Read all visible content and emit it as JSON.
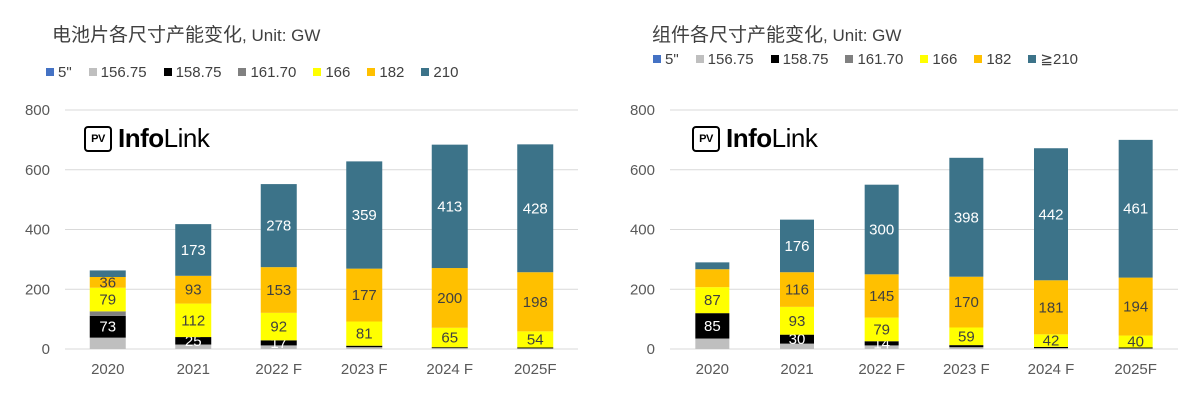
{
  "charts": [
    {
      "title_main": "电池片各尺寸产能变化",
      "title_unit": ", Unit: GW",
      "logo": {
        "box": "PV",
        "info": "Info",
        "link": "Link"
      },
      "legend": [
        {
          "label": "5\"",
          "color": "#4472c4"
        },
        {
          "label": "156.75",
          "color": "#bfbfbf"
        },
        {
          "label": "158.75",
          "color": "#000000"
        },
        {
          "label": "161.70",
          "color": "#808080"
        },
        {
          "label": "166",
          "color": "#ffff00"
        },
        {
          "label": "182",
          "color": "#ffc000"
        },
        {
          "label": "210",
          "color": "#3c7389"
        }
      ]
    },
    {
      "title_main": "组件各尺寸产能变化",
      "title_unit": ", Unit: GW",
      "logo": {
        "box": "PV",
        "info": "Info",
        "link": "Link"
      },
      "legend": [
        {
          "label": "5\"",
          "color": "#4472c4"
        },
        {
          "label": "156.75",
          "color": "#bfbfbf"
        },
        {
          "label": "158.75",
          "color": "#000000"
        },
        {
          "label": "161.70",
          "color": "#808080"
        },
        {
          "label": "166",
          "color": "#ffff00"
        },
        {
          "label": "182",
          "color": "#ffc000"
        },
        {
          "label": "≧210",
          "color": "#3c7389"
        }
      ]
    }
  ],
  "chart_data": [
    {
      "type": "bar",
      "stacked": true,
      "title": "电池片各尺寸产能变化, Unit: GW",
      "categories": [
        "2020",
        "2021",
        "2022 F",
        "2023 F",
        "2024 F",
        "2025F"
      ],
      "ylim": [
        0,
        800
      ],
      "yticks": [
        0,
        200,
        400,
        600,
        800
      ],
      "grid": true,
      "legend_position": "top",
      "series": [
        {
          "name": "5\"",
          "color": "#4472c4",
          "values": [
            0,
            0,
            0,
            0,
            0,
            0
          ],
          "labels": [
            "",
            "",
            "",
            "",
            "",
            ""
          ]
        },
        {
          "name": "156.75",
          "color": "#bfbfbf",
          "values": [
            38,
            15,
            12,
            6,
            3,
            2
          ],
          "labels": [
            "",
            "",
            "",
            "",
            "",
            ""
          ]
        },
        {
          "name": "158.75",
          "color": "#000000",
          "values": [
            73,
            25,
            17,
            5,
            3,
            3
          ],
          "labels": [
            "73",
            "25",
            "17",
            "",
            "",
            ""
          ]
        },
        {
          "name": "161.70",
          "color": "#808080",
          "values": [
            15,
            0,
            0,
            0,
            0,
            0
          ],
          "labels": [
            "",
            "",
            "",
            "",
            "",
            ""
          ]
        },
        {
          "name": "166",
          "color": "#ffff00",
          "values": [
            79,
            112,
            92,
            81,
            65,
            54
          ],
          "labels": [
            "79",
            "112",
            "92",
            "81",
            "65",
            "54"
          ]
        },
        {
          "name": "182",
          "color": "#ffc000",
          "values": [
            36,
            93,
            153,
            177,
            200,
            198
          ],
          "labels": [
            "36",
            "93",
            "153",
            "177",
            "200",
            "198"
          ]
        },
        {
          "name": "210",
          "color": "#3c7389",
          "values": [
            22,
            173,
            278,
            359,
            413,
            428
          ],
          "labels": [
            "",
            "173",
            "278",
            "359",
            "413",
            "428"
          ]
        }
      ]
    },
    {
      "type": "bar",
      "stacked": true,
      "title": "组件各尺寸产能变化, Unit: GW",
      "categories": [
        "2020",
        "2021",
        "2022 F",
        "2023 F",
        "2024 F",
        "2025F"
      ],
      "ylim": [
        0,
        800
      ],
      "yticks": [
        0,
        200,
        400,
        600,
        800
      ],
      "grid": true,
      "legend_position": "top",
      "series": [
        {
          "name": "5\"",
          "color": "#4472c4",
          "values": [
            0,
            0,
            0,
            0,
            0,
            0
          ],
          "labels": [
            "",
            "",
            "",
            "",
            "",
            ""
          ]
        },
        {
          "name": "156.75",
          "color": "#bfbfbf",
          "values": [
            35,
            18,
            12,
            6,
            3,
            2
          ],
          "labels": [
            "",
            "",
            "",
            "",
            "",
            ""
          ]
        },
        {
          "name": "158.75",
          "color": "#000000",
          "values": [
            85,
            30,
            14,
            7,
            4,
            3
          ],
          "labels": [
            "85",
            "30",
            "14",
            "",
            "",
            ""
          ]
        },
        {
          "name": "161.70",
          "color": "#808080",
          "values": [
            0,
            0,
            0,
            0,
            0,
            0
          ],
          "labels": [
            "",
            "",
            "",
            "",
            "",
            ""
          ]
        },
        {
          "name": "166",
          "color": "#ffff00",
          "values": [
            87,
            93,
            79,
            59,
            42,
            40
          ],
          "labels": [
            "87",
            "93",
            "79",
            "59",
            "42",
            "40"
          ]
        },
        {
          "name": "182",
          "color": "#ffc000",
          "values": [
            60,
            116,
            145,
            170,
            181,
            194
          ],
          "labels": [
            "",
            "116",
            "145",
            "170",
            "181",
            "194"
          ]
        },
        {
          "name": "≧210",
          "color": "#3c7389",
          "values": [
            23,
            176,
            300,
            398,
            442,
            461
          ],
          "labels": [
            "",
            "176",
            "300",
            "398",
            "442",
            "461"
          ]
        }
      ]
    }
  ]
}
